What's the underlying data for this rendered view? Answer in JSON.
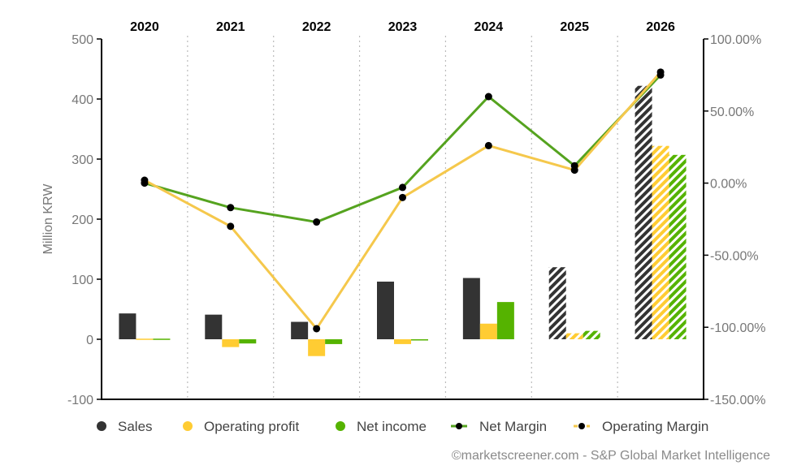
{
  "chart_data": {
    "type": "bar",
    "categories": [
      "2020",
      "2021",
      "2022",
      "2023",
      "2024",
      "2025",
      "2026"
    ],
    "estimate_from_index": 5,
    "ylabel": "Million KRW",
    "ylim": [
      -100,
      500
    ],
    "y_ticks": [
      -100,
      0,
      100,
      200,
      300,
      400,
      500
    ],
    "y_tick_labels": [
      "-100",
      "0",
      "100",
      "200",
      "300",
      "400",
      "500"
    ],
    "y2lim": [
      -150,
      100
    ],
    "y2_ticks": [
      100,
      50,
      0,
      -50,
      -100,
      -150
    ],
    "y2_tick_labels": [
      "100.00%",
      "50.00%",
      "0.00%",
      "-50.00%",
      "-100.00%",
      "-150.00%"
    ],
    "grid": "vertical dotted between years",
    "series": [
      {
        "name": "Sales",
        "kind": "bar",
        "axis": "left",
        "color": "#333333",
        "values": [
          43,
          41,
          29,
          96,
          102,
          120,
          422
        ]
      },
      {
        "name": "Operating profit",
        "kind": "bar",
        "axis": "left",
        "color": "#ffcc33",
        "values": [
          1,
          -13,
          -28,
          -8,
          26,
          10,
          322
        ]
      },
      {
        "name": "Net income",
        "kind": "bar",
        "axis": "left",
        "color": "#55b300",
        "values": [
          1,
          -7,
          -8,
          -2,
          62,
          14,
          307
        ]
      },
      {
        "name": "Net Margin",
        "kind": "line",
        "axis": "right",
        "color": "#55a31f",
        "values": [
          0,
          -17,
          -27,
          -3,
          60,
          12,
          75
        ]
      },
      {
        "name": "Operating Margin",
        "kind": "line",
        "axis": "right",
        "color": "#f5c84c",
        "values": [
          2,
          -30,
          -101,
          -10,
          26,
          9,
          77
        ]
      }
    ],
    "legend": [
      "Sales",
      "Operating profit",
      "Net income",
      "Net Margin",
      "Operating Margin"
    ],
    "legend_position": "bottom",
    "credit": "©marketscreener.com - S&P Global Market Intelligence"
  }
}
